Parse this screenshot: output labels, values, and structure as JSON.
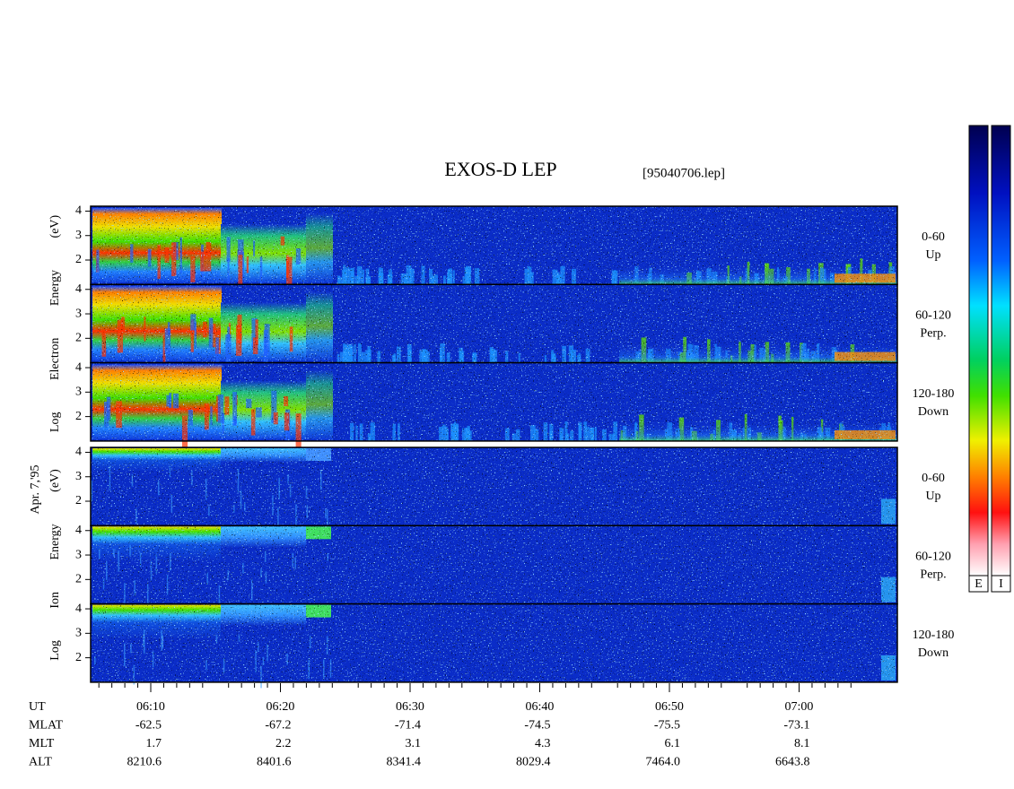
{
  "chart_data": {
    "type": "spectrogram",
    "title": "EXOS-D LEP",
    "subtitle": "[95040706.lep]",
    "date_label": "Apr. 7,'95",
    "groups": [
      {
        "ylabel": "Log Electron Energy (eV)",
        "kind": "electron",
        "panels": [
          {
            "range": "0-60",
            "direction": "Up"
          },
          {
            "range": "60-120",
            "direction": "Perp."
          },
          {
            "range": "120-180",
            "direction": "Down"
          }
        ]
      },
      {
        "ylabel": "Log Ion Energy (eV)",
        "kind": "ion",
        "panels": [
          {
            "range": "0-60",
            "direction": "Up"
          },
          {
            "range": "60-120",
            "direction": "Perp."
          },
          {
            "range": "120-180",
            "direction": "Down"
          }
        ]
      }
    ],
    "ylim": [
      1,
      4.2
    ],
    "yticks": [
      2,
      3,
      4
    ],
    "ephemeris": [
      {
        "label": "UT",
        "values": [
          "06:10",
          "06:20",
          "06:30",
          "06:40",
          "06:50",
          "07:00"
        ]
      },
      {
        "label": "MLAT",
        "values": [
          "-62.5",
          "-67.2",
          "-71.4",
          "-74.5",
          "-75.5",
          "-73.1"
        ]
      },
      {
        "label": "MLT",
        "values": [
          "1.7",
          "2.2",
          "3.1",
          "4.3",
          "6.1",
          "8.1"
        ]
      },
      {
        "label": "ALT",
        "values": [
          "8210.6",
          "8401.6",
          "8341.4",
          "8029.4",
          "7464.0",
          "6643.8"
        ]
      }
    ],
    "colorbars": [
      "E",
      "I"
    ]
  }
}
